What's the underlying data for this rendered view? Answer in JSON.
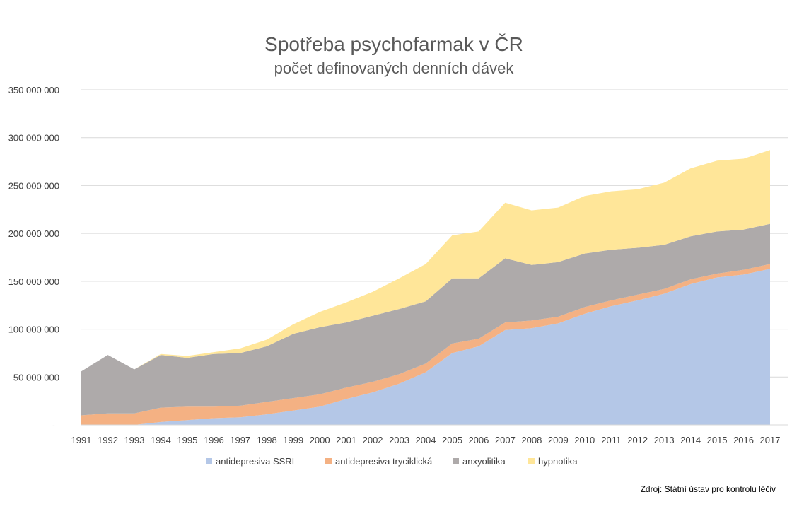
{
  "chart_data": {
    "type": "area",
    "stacked": true,
    "title": "Spotřeba psychofarmak v ČR",
    "subtitle": "počet definovaných denních dávek",
    "source": "Zdroj: Státní ústav pro kontrolu léčiv",
    "ylim": [
      0,
      350000000
    ],
    "grid": true,
    "legend_position": "bottom",
    "y_tick_labels": [
      "-",
      "50 000 000",
      "100 000 000",
      "150 000 000",
      "200 000 000",
      "250 000 000",
      "300 000 000",
      "350 000 000"
    ],
    "categories": [
      "1991",
      "1992",
      "1993",
      "1994",
      "1995",
      "1996",
      "1997",
      "1998",
      "1999",
      "2000",
      "2001",
      "2002",
      "2003",
      "2004",
      "2005",
      "2006",
      "2007",
      "2008",
      "2009",
      "2010",
      "2011",
      "2012",
      "2013",
      "2014",
      "2015",
      "2016",
      "2017"
    ],
    "series": [
      {
        "name": "antidepresiva SSRI",
        "color": "#b4c7e7",
        "values": [
          0,
          0,
          0,
          3000000,
          5000000,
          7000000,
          8000000,
          11000000,
          15000000,
          19000000,
          27000000,
          34000000,
          43000000,
          55000000,
          75000000,
          82000000,
          99000000,
          101000000,
          106000000,
          116000000,
          124000000,
          130000000,
          137000000,
          147000000,
          154000000,
          157000000,
          163000000
        ]
      },
      {
        "name": "antidepresiva tryciklická",
        "color": "#f4b183",
        "values": [
          10000000,
          12000000,
          12000000,
          15000000,
          14000000,
          12000000,
          12000000,
          13000000,
          13000000,
          13000000,
          12000000,
          11000000,
          10000000,
          9000000,
          10000000,
          8000000,
          8000000,
          8000000,
          7000000,
          7000000,
          6000000,
          6000000,
          5000000,
          5000000,
          4000000,
          5000000,
          5000000
        ]
      },
      {
        "name": "anxyolitika",
        "color": "#aeaaaa",
        "values": [
          46000000,
          61000000,
          46000000,
          55000000,
          51000000,
          55000000,
          55000000,
          58000000,
          67000000,
          70000000,
          68000000,
          69000000,
          68000000,
          65000000,
          68000000,
          63000000,
          67000000,
          58000000,
          57000000,
          56000000,
          53000000,
          49000000,
          46000000,
          45000000,
          44000000,
          42000000,
          42000000
        ]
      },
      {
        "name": "hypnotika",
        "color": "#ffe699",
        "values": [
          0,
          0,
          0,
          1000000,
          2000000,
          2000000,
          5000000,
          7000000,
          10000000,
          16000000,
          21000000,
          25000000,
          32000000,
          39000000,
          45000000,
          49000000,
          58000000,
          57000000,
          57000000,
          60000000,
          61000000,
          61000000,
          65000000,
          71000000,
          74000000,
          74000000,
          77000000
        ]
      }
    ]
  }
}
